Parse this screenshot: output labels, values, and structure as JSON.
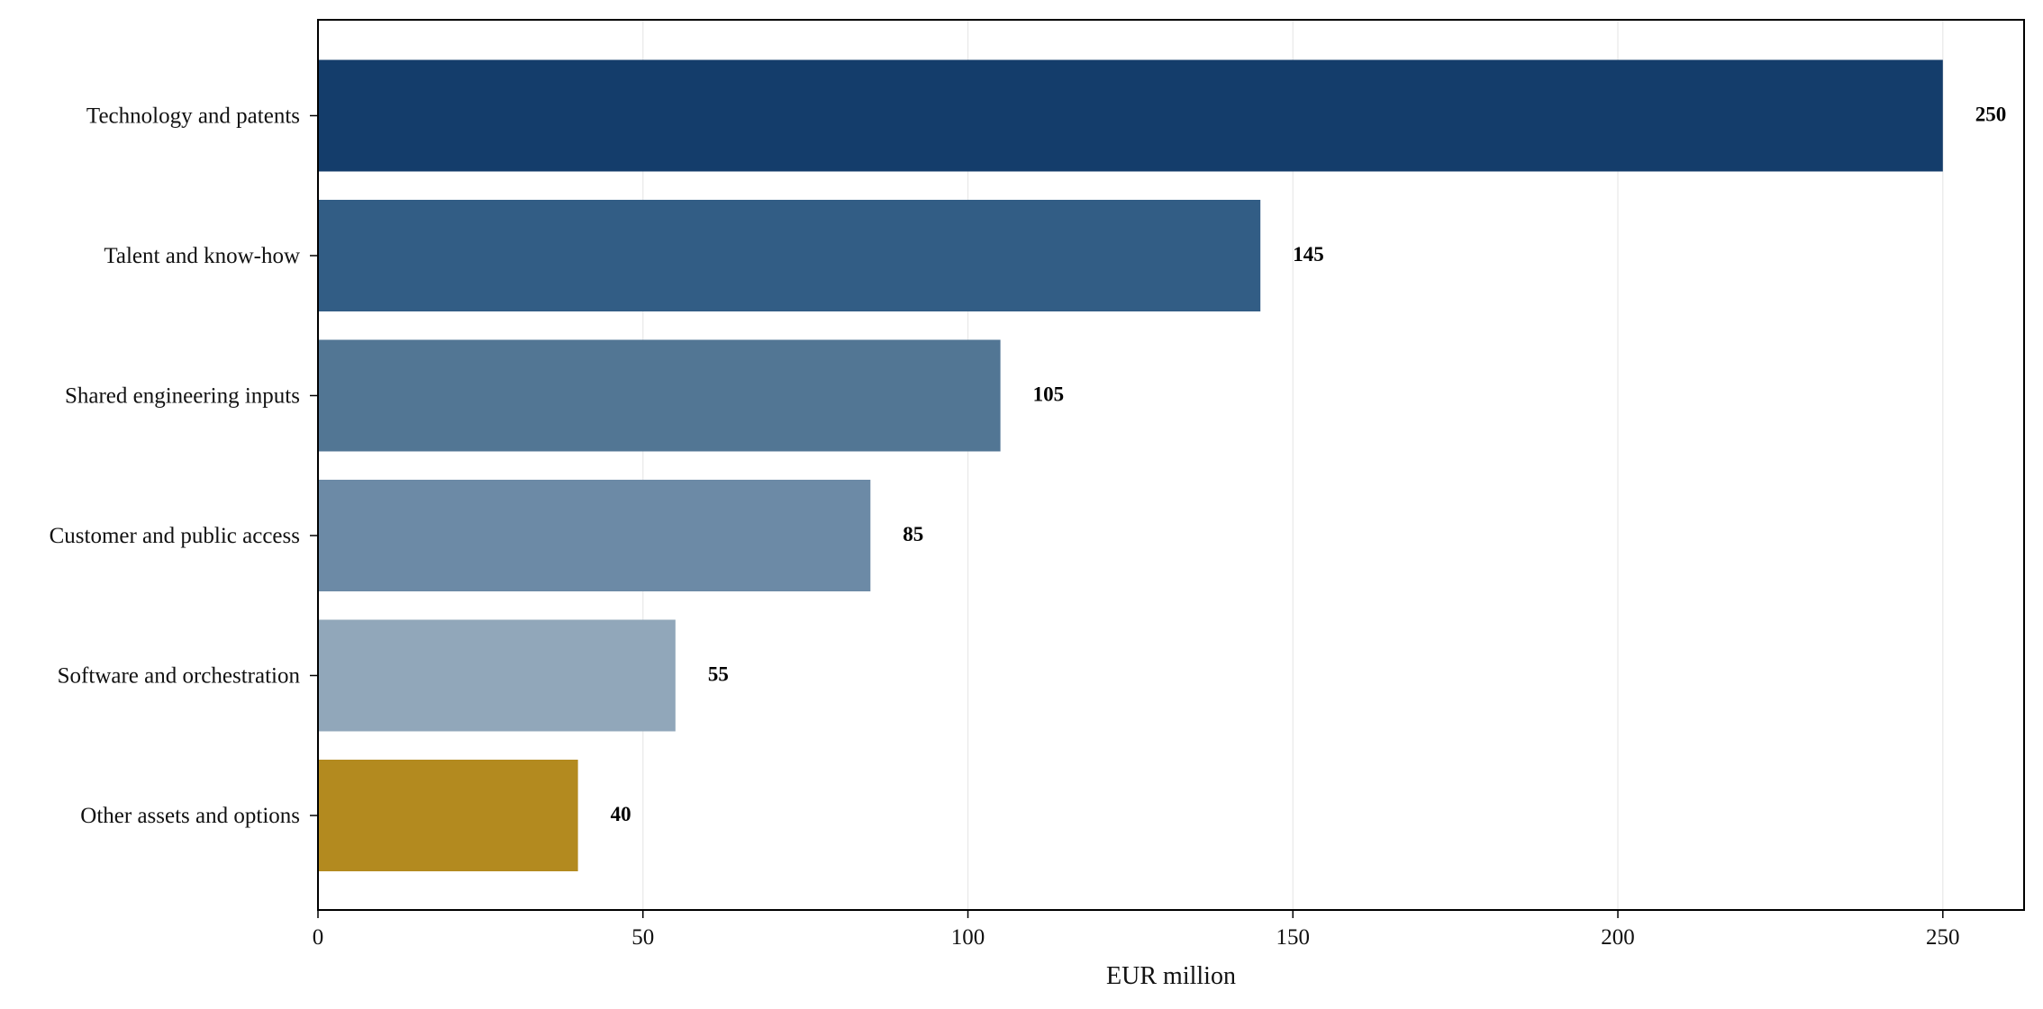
{
  "chart_data": {
    "type": "bar",
    "orientation": "horizontal",
    "categories": [
      "Technology and patents",
      "Talent and know-how",
      "Shared engineering inputs",
      "Customer and public access",
      "Software and orchestration",
      "Other assets and options"
    ],
    "values": [
      250,
      145,
      105,
      85,
      55,
      40
    ],
    "data_labels": [
      "250",
      "145",
      "105",
      "85",
      "55",
      "40"
    ],
    "colors": [
      "#143d6b",
      "#325d85",
      "#527694",
      "#6c8aa6",
      "#91a7ba",
      "#b38a1f"
    ],
    "xlabel": "EUR million",
    "ylabel": "",
    "title": "",
    "xlim": [
      0,
      262.5
    ],
    "xticks": [
      0,
      50,
      100,
      150,
      200,
      250
    ],
    "xtick_labels": [
      "0",
      "50",
      "100",
      "150",
      "200",
      "250"
    ],
    "grid": "vertical",
    "legend": "none"
  }
}
